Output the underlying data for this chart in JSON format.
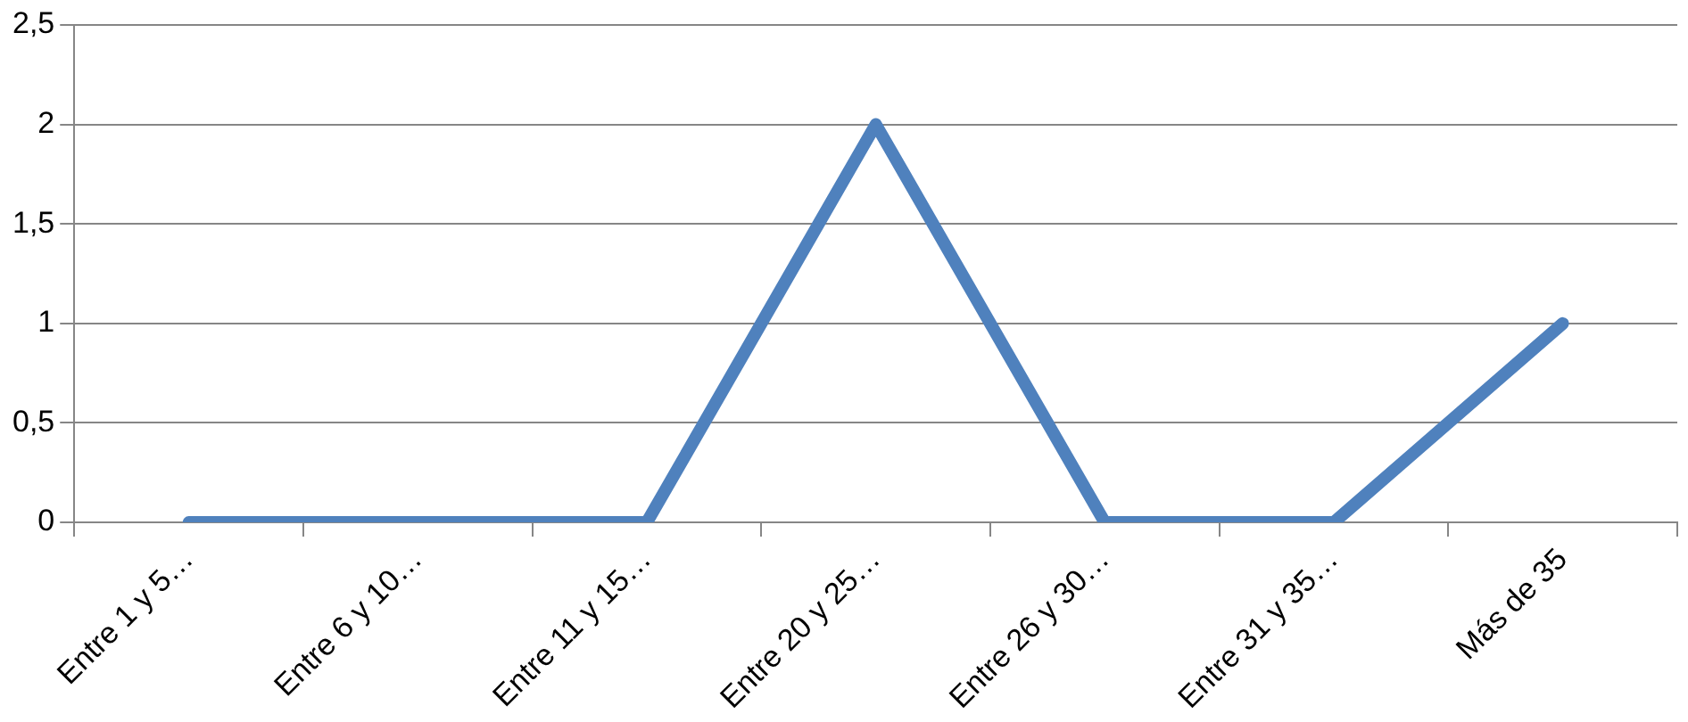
{
  "chart_data": {
    "type": "line",
    "categories": [
      "Entre 1 y 5…",
      "Entre 6 y 10…",
      "Entre 11 y 15…",
      "Entre 20 y 25…",
      "Entre 26 y 30…",
      "Entre 31 y 35…",
      "Más de 35"
    ],
    "series": [
      {
        "color": "#4f81bd",
        "values": [
          0,
          0,
          0,
          2,
          0,
          0,
          1
        ]
      }
    ],
    "ylim": [
      0,
      2.5
    ],
    "yticks": [
      0,
      {
        "value": 0.5,
        "label": "0,5"
      },
      1,
      {
        "value": 1.5,
        "label": "1,5"
      },
      2,
      {
        "value": 2.5,
        "label": "2,5"
      }
    ],
    "grid": "y",
    "legend": false,
    "marker": "none",
    "line_style": "solid"
  }
}
